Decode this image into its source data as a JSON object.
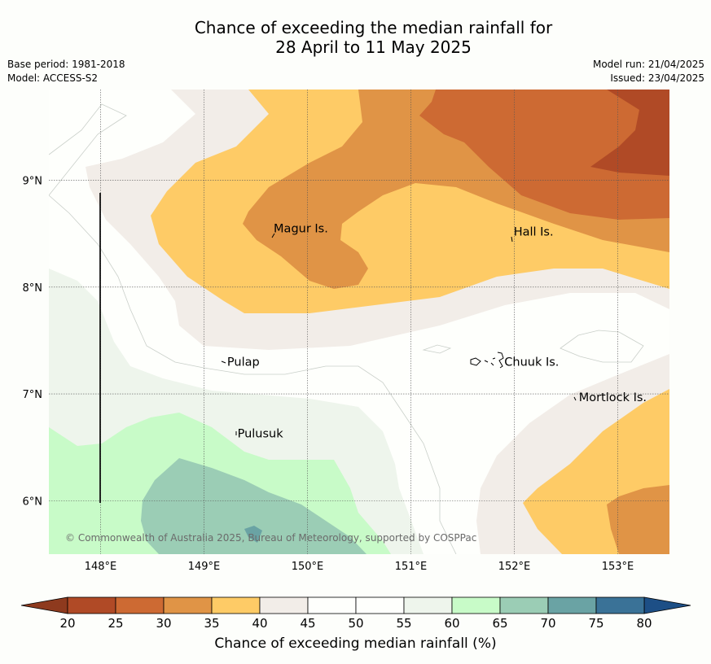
{
  "title": {
    "line1": "Chance of exceeding the median rainfall for",
    "line2": "28 April to 11 May 2025"
  },
  "meta_left": {
    "base_period": "Base period: 1981-2018",
    "model": "Model: ACCESS-S2"
  },
  "meta_right": {
    "model_run": "Model run: 21/04/2025",
    "issued": "Issued: 23/04/2025"
  },
  "map": {
    "lon_range": [
      147.5,
      153.5
    ],
    "lat_range": [
      5.5,
      9.85
    ],
    "lon_ticks": [
      "148°E",
      "149°E",
      "150°E",
      "151°E",
      "152°E",
      "153°E"
    ],
    "lat_ticks": [
      "9°N",
      "8°N",
      "7°N",
      "6°N"
    ],
    "places": [
      {
        "name": "Magur Is.",
        "lon": 149.65,
        "lat": 8.55
      },
      {
        "name": "Hall Is.",
        "lon": 151.97,
        "lat": 8.52
      },
      {
        "name": "Pulap",
        "lon": 149.2,
        "lat": 7.3
      },
      {
        "name": "Chuuk Is.",
        "lon": 151.88,
        "lat": 7.3
      },
      {
        "name": "Mortlock Is.",
        "lon": 152.6,
        "lat": 6.97
      },
      {
        "name": "Pulusuk",
        "lon": 149.3,
        "lat": 6.63
      }
    ],
    "copyright": "© Commonwealth of Australia 2025, Bureau of Meteorology, supported by COSPPac"
  },
  "colorbar": {
    "label": "Chance of exceeding median rainfall (%)",
    "ticks": [
      "20",
      "25",
      "30",
      "35",
      "40",
      "45",
      "50",
      "55",
      "60",
      "65",
      "70",
      "75",
      "80"
    ],
    "colors": [
      "#b04a26",
      "#cd6a33",
      "#e09446",
      "#fecb66",
      "#f2ede8",
      "#fefffc",
      "#fefffc",
      "#eef5ec",
      "#c8fbc8",
      "#9bcdb5",
      "#6aa3a4",
      "#3a7297"
    ],
    "under_color": "#8e3a1e",
    "over_color": "#1d4f86"
  }
}
